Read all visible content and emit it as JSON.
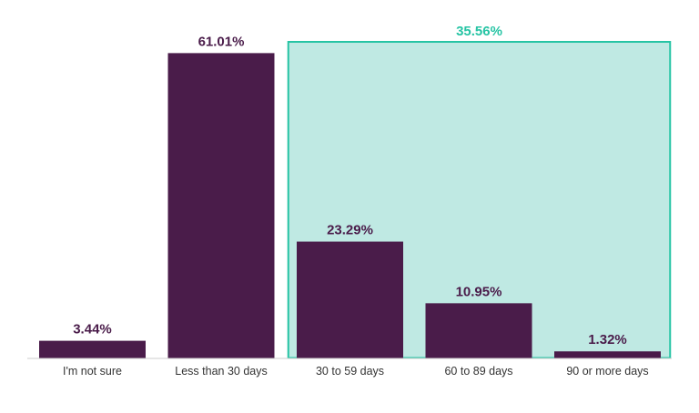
{
  "chart_data": {
    "type": "bar",
    "title": "",
    "xlabel": "",
    "ylabel": "",
    "categories": [
      "I'm not sure",
      "Less than 30 days",
      "30 to 59 days",
      "60 to 89 days",
      "90 or more days"
    ],
    "values": [
      3.44,
      61.01,
      23.29,
      10.95,
      1.32
    ],
    "value_labels": [
      "3.44%",
      "61.01%",
      "23.29%",
      "10.95%",
      "1.32%"
    ],
    "ylim": [
      0,
      70
    ],
    "grid": false,
    "highlight_group": {
      "label": "35.56%",
      "category_start": 2,
      "category_end": 4
    }
  },
  "colors": {
    "bar": "#4a1c4a",
    "highlight_fill": "#bfe9e3",
    "highlight_stroke": "#26c4a4",
    "highlight_text": "#26c4a4",
    "baseline": "#cccccc"
  }
}
